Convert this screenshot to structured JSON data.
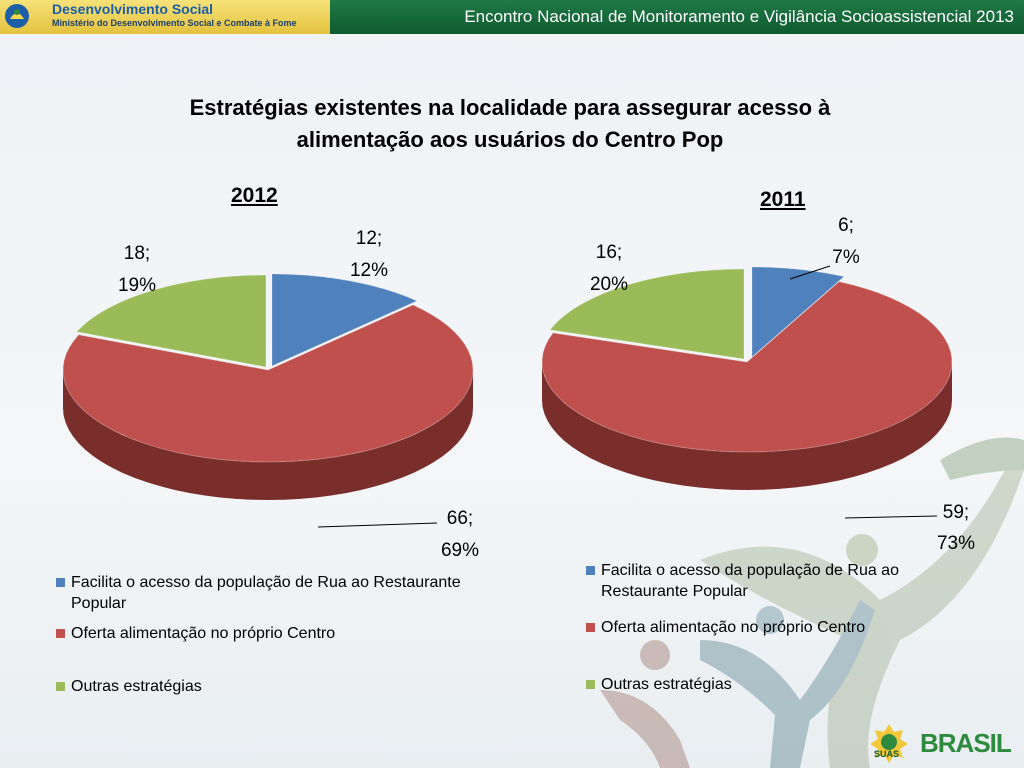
{
  "header": {
    "brand_title": "Desenvolvimento Social",
    "brand_subtitle": "Ministério do Desenvolvimento Social e Combate à Fome",
    "event_title": "Encontro Nacional de Monitoramento e Vigilância Socioassistencial 2013"
  },
  "page_title_line1": "Estratégias existentes na localidade para assegurar acesso à",
  "page_title_line2": "alimentação aos usuários do Centro Pop",
  "colors": {
    "blue": "#4f81bd",
    "red": "#c0504d",
    "green": "#9bbb59"
  },
  "chart_data": [
    {
      "type": "pie",
      "title": "2012",
      "series": [
        {
          "name": "Facilita o acesso da população de Rua ao Restaurante Popular",
          "value": 12,
          "percent": "12%",
          "label_value": "12;",
          "label_percent": "12%"
        },
        {
          "name": "Oferta alimentação no próprio Centro",
          "value": 66,
          "percent": "69%",
          "label_value": "66;",
          "label_percent": "69%"
        },
        {
          "name": "Outras estratégias",
          "value": 18,
          "percent": "19%",
          "label_value": "18;",
          "label_percent": "19%"
        }
      ],
      "legend": {
        "item0_line1": "Facilita o acesso da população de Rua ao Restaurante",
        "item0_line2": "Popular",
        "item1": "Oferta alimentação no próprio Centro",
        "item2": "Outras estratégias"
      }
    },
    {
      "type": "pie",
      "title": "2011",
      "series": [
        {
          "name": "Facilita o acesso da população de Rua ao Restaurante Popular",
          "value": 6,
          "percent": "7%",
          "label_value": "6;",
          "label_percent": "7%"
        },
        {
          "name": "Oferta alimentação no próprio Centro",
          "value": 59,
          "percent": "73%",
          "label_value": "59;",
          "label_percent": "73%"
        },
        {
          "name": "Outras estratégias",
          "value": 16,
          "percent": "20%",
          "label_value": "16;",
          "label_percent": "20%"
        }
      ],
      "legend": {
        "item0_line1": "Facilita o acesso da população de Rua ao",
        "item0_line2": "Restaurante Popular",
        "item1": "Oferta alimentação no próprio Centro",
        "item2": "Outras estratégias"
      }
    }
  ],
  "footer": {
    "sujas": "SUAS",
    "brasil": "BRASIL"
  }
}
